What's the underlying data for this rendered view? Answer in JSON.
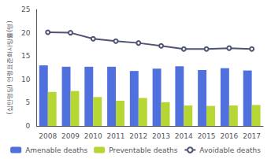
{
  "chart_data": {
    "type": "bar",
    "categories": [
      "2008",
      "2009",
      "2010",
      "2011",
      "2012",
      "2013",
      "2014",
      "2015",
      "2016",
      "2017"
    ],
    "series": [
      {
        "name": "Amenable deaths",
        "type": "bar",
        "values": [
          13.0,
          12.7,
          12.7,
          12.7,
          11.8,
          12.3,
          12.8,
          12.0,
          12.4,
          11.9
        ]
      },
      {
        "name": "Preventable deaths",
        "type": "bar",
        "values": [
          7.3,
          7.5,
          6.2,
          5.4,
          6.0,
          5.1,
          4.4,
          4.3,
          4.4,
          4.5
        ]
      },
      {
        "name": "Avoidable deaths",
        "type": "line",
        "marker": "circle",
        "values": [
          20.1,
          20.0,
          18.7,
          18.2,
          17.8,
          17.2,
          16.5,
          16.5,
          16.7,
          16.5
        ]
      }
    ],
    "ylabel": "(십만명당) 연령표준화사망률(명)",
    "ylim": [
      0,
      25
    ],
    "yticks": [
      0,
      5,
      10,
      15,
      20,
      25
    ],
    "grid": false,
    "legend": "bottom"
  }
}
